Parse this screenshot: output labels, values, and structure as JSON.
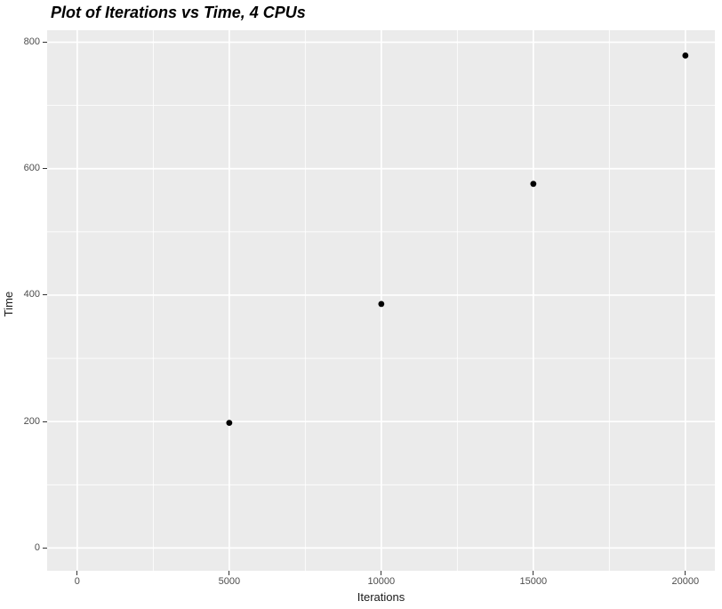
{
  "chart_data": {
    "type": "scatter",
    "title": "Plot of Iterations vs Time, 4 CPUs",
    "xlabel": "Iterations",
    "ylabel": "Time",
    "points": [
      {
        "x": 5000,
        "y": 198
      },
      {
        "x": 10000,
        "y": 386
      },
      {
        "x": 15000,
        "y": 576
      },
      {
        "x": 20000,
        "y": 779
      }
    ],
    "xlim": [
      -990,
      20970
    ],
    "ylim": [
      -36,
      819
    ],
    "x_ticks": [
      {
        "value": 0,
        "label": "0"
      },
      {
        "value": 5000,
        "label": "5000"
      },
      {
        "value": 10000,
        "label": "10000"
      },
      {
        "value": 15000,
        "label": "15000"
      },
      {
        "value": 20000,
        "label": "20000"
      }
    ],
    "y_ticks": [
      {
        "value": 0,
        "label": "0"
      },
      {
        "value": 200,
        "label": "200"
      },
      {
        "value": 400,
        "label": "400"
      },
      {
        "value": 600,
        "label": "600"
      },
      {
        "value": 800,
        "label": "800"
      }
    ],
    "x_minor_ticks": [
      2500,
      7500,
      12500,
      17500
    ],
    "y_minor_ticks": [
      100,
      300,
      500,
      700
    ],
    "grid": "on",
    "legend": "none",
    "style": {
      "figure_bg": "#FFFFFF",
      "panel_bg": "#EBEBEB",
      "grid_major_color": "#FFFFFF",
      "grid_minor_color": "#FFFFFF",
      "point_color": "#000000",
      "point_radius": 3.4,
      "tick_label_color": "#4D4D4D",
      "tick_mark_color": "#333333",
      "title_color": "#000000",
      "axis_title_color": "#1A1A1A"
    }
  }
}
